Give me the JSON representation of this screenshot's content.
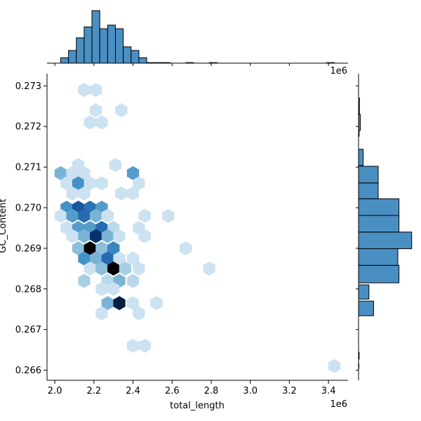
{
  "chart_data": [
    {
      "type": "hexbin",
      "panel": "joint",
      "xlabel": "total_length",
      "ylabel": "GC_Content",
      "x_offset_label": "1e6",
      "xlim": [
        1.96,
        3.5
      ],
      "ylim": [
        0.26575,
        0.2733
      ],
      "xticks": [
        2.0,
        2.2,
        2.4,
        2.6,
        2.8,
        3.0,
        3.2,
        3.4
      ],
      "xtick_labels": [
        "2.0",
        "2.2",
        "2.4",
        "2.6",
        "2.8",
        "3.0",
        "3.2",
        "3.4"
      ],
      "yticks": [
        0.266,
        0.267,
        0.268,
        0.269,
        0.27,
        0.271,
        0.272,
        0.273
      ],
      "ytick_labels": [
        "0.266",
        "0.267",
        "0.268",
        "0.269",
        "0.270",
        "0.271",
        "0.272",
        "0.273"
      ],
      "cmap": [
        "#deebf7",
        "#08306b"
      ],
      "points": [
        {
          "x": 2.15,
          "y": 0.2729,
          "c": 0.1
        },
        {
          "x": 2.21,
          "y": 0.2729,
          "c": 0.1
        },
        {
          "x": 2.21,
          "y": 0.2724,
          "c": 0.1
        },
        {
          "x": 2.34,
          "y": 0.2724,
          "c": 0.1
        },
        {
          "x": 2.18,
          "y": 0.2721,
          "c": 0.1
        },
        {
          "x": 2.24,
          "y": 0.2721,
          "c": 0.1
        },
        {
          "x": 2.12,
          "y": 0.27105,
          "c": 0.1
        },
        {
          "x": 2.31,
          "y": 0.27105,
          "c": 0.1
        },
        {
          "x": 2.03,
          "y": 0.27085,
          "c": 0.45
        },
        {
          "x": 2.09,
          "y": 0.27085,
          "c": 0.1
        },
        {
          "x": 2.15,
          "y": 0.27085,
          "c": 0.1
        },
        {
          "x": 2.4,
          "y": 0.27085,
          "c": 0.55
        },
        {
          "x": 2.06,
          "y": 0.2706,
          "c": 0.1
        },
        {
          "x": 2.12,
          "y": 0.2706,
          "c": 0.6
        },
        {
          "x": 2.18,
          "y": 0.2706,
          "c": 0.1
        },
        {
          "x": 2.24,
          "y": 0.2706,
          "c": 0.1
        },
        {
          "x": 2.43,
          "y": 0.2706,
          "c": 0.1
        },
        {
          "x": 2.09,
          "y": 0.27035,
          "c": 0.1
        },
        {
          "x": 2.15,
          "y": 0.27035,
          "c": 0.1
        },
        {
          "x": 2.34,
          "y": 0.27035,
          "c": 0.1
        },
        {
          "x": 2.4,
          "y": 0.27035,
          "c": 0.1
        },
        {
          "x": 2.06,
          "y": 0.27,
          "c": 0.6
        },
        {
          "x": 2.12,
          "y": 0.27,
          "c": 0.82
        },
        {
          "x": 2.18,
          "y": 0.27,
          "c": 0.72
        },
        {
          "x": 2.24,
          "y": 0.27,
          "c": 0.55
        },
        {
          "x": 2.03,
          "y": 0.2698,
          "c": 0.1
        },
        {
          "x": 2.09,
          "y": 0.2698,
          "c": 0.55
        },
        {
          "x": 2.15,
          "y": 0.2698,
          "c": 0.75
        },
        {
          "x": 2.21,
          "y": 0.2698,
          "c": 0.45
        },
        {
          "x": 2.27,
          "y": 0.2698,
          "c": 0.1
        },
        {
          "x": 2.46,
          "y": 0.2698,
          "c": 0.1
        },
        {
          "x": 2.58,
          "y": 0.2698,
          "c": 0.1
        },
        {
          "x": 2.06,
          "y": 0.2695,
          "c": 0.1
        },
        {
          "x": 2.12,
          "y": 0.2695,
          "c": 0.55
        },
        {
          "x": 2.18,
          "y": 0.2695,
          "c": 0.55
        },
        {
          "x": 2.24,
          "y": 0.2695,
          "c": 0.75
        },
        {
          "x": 2.3,
          "y": 0.2695,
          "c": 0.2
        },
        {
          "x": 2.43,
          "y": 0.2695,
          "c": 0.1
        },
        {
          "x": 2.09,
          "y": 0.2693,
          "c": 0.1
        },
        {
          "x": 2.15,
          "y": 0.2693,
          "c": 0.45
        },
        {
          "x": 2.21,
          "y": 0.2693,
          "c": 0.92
        },
        {
          "x": 2.27,
          "y": 0.2693,
          "c": 0.45
        },
        {
          "x": 2.33,
          "y": 0.2693,
          "c": 0.1
        },
        {
          "x": 2.46,
          "y": 0.2693,
          "c": 0.1
        },
        {
          "x": 2.12,
          "y": 0.269,
          "c": 0.4
        },
        {
          "x": 2.18,
          "y": 0.269,
          "c": 1.0
        },
        {
          "x": 2.24,
          "y": 0.269,
          "c": 0.4
        },
        {
          "x": 2.3,
          "y": 0.269,
          "c": 0.65
        },
        {
          "x": 2.67,
          "y": 0.269,
          "c": 0.1
        },
        {
          "x": 2.15,
          "y": 0.26875,
          "c": 0.6
        },
        {
          "x": 2.21,
          "y": 0.26875,
          "c": 0.45
        },
        {
          "x": 2.27,
          "y": 0.26875,
          "c": 0.75
        },
        {
          "x": 2.33,
          "y": 0.26875,
          "c": 0.1
        },
        {
          "x": 2.4,
          "y": 0.26875,
          "c": 0.1
        },
        {
          "x": 2.18,
          "y": 0.2685,
          "c": 0.1
        },
        {
          "x": 2.24,
          "y": 0.2685,
          "c": 0.4
        },
        {
          "x": 2.3,
          "y": 0.2685,
          "c": 1.0
        },
        {
          "x": 2.36,
          "y": 0.2685,
          "c": 0.3
        },
        {
          "x": 2.43,
          "y": 0.2685,
          "c": 0.1
        },
        {
          "x": 2.79,
          "y": 0.2685,
          "c": 0.1
        },
        {
          "x": 2.15,
          "y": 0.2682,
          "c": 0.3
        },
        {
          "x": 2.27,
          "y": 0.2682,
          "c": 0.2
        },
        {
          "x": 2.33,
          "y": 0.2682,
          "c": 0.45
        },
        {
          "x": 2.4,
          "y": 0.2682,
          "c": 0.2
        },
        {
          "x": 2.24,
          "y": 0.268,
          "c": 0.1
        },
        {
          "x": 2.3,
          "y": 0.268,
          "c": 0.1
        },
        {
          "x": 2.27,
          "y": 0.26765,
          "c": 0.45
        },
        {
          "x": 2.33,
          "y": 0.26765,
          "c": 0.95
        },
        {
          "x": 2.4,
          "y": 0.26765,
          "c": 0.1
        },
        {
          "x": 2.52,
          "y": 0.26765,
          "c": 0.1
        },
        {
          "x": 2.24,
          "y": 0.2674,
          "c": 0.1
        },
        {
          "x": 2.43,
          "y": 0.2674,
          "c": 0.1
        },
        {
          "x": 2.4,
          "y": 0.2666,
          "c": 0.1
        },
        {
          "x": 2.46,
          "y": 0.2666,
          "c": 0.1
        },
        {
          "x": 3.43,
          "y": 0.2661,
          "c": 0.1
        }
      ]
    },
    {
      "type": "histogram",
      "panel": "marginal-x",
      "fill": "#4a8fc2",
      "bins": [
        {
          "x0": 2.03,
          "x1": 2.07,
          "count": 3
        },
        {
          "x0": 2.07,
          "x1": 2.11,
          "count": 7
        },
        {
          "x0": 2.11,
          "x1": 2.15,
          "count": 14
        },
        {
          "x0": 2.15,
          "x1": 2.19,
          "count": 20
        },
        {
          "x0": 2.19,
          "x1": 2.23,
          "count": 29
        },
        {
          "x0": 2.23,
          "x1": 2.27,
          "count": 19
        },
        {
          "x0": 2.27,
          "x1": 2.31,
          "count": 21
        },
        {
          "x0": 2.31,
          "x1": 2.35,
          "count": 19
        },
        {
          "x0": 2.35,
          "x1": 2.39,
          "count": 9
        },
        {
          "x0": 2.39,
          "x1": 2.43,
          "count": 7
        },
        {
          "x0": 2.43,
          "x1": 2.47,
          "count": 3
        },
        {
          "x0": 2.47,
          "x1": 2.51,
          "count": 0.3
        },
        {
          "x0": 2.51,
          "x1": 2.55,
          "count": 0.3
        },
        {
          "x0": 2.55,
          "x1": 2.59,
          "count": 0.3
        },
        {
          "x0": 2.67,
          "x1": 2.71,
          "count": 0.3
        },
        {
          "x0": 2.79,
          "x1": 2.83,
          "count": 0.3
        },
        {
          "x0": 3.39,
          "x1": 3.43,
          "count": 0.3
        }
      ],
      "ymax": 31
    },
    {
      "type": "histogram",
      "panel": "marginal-y",
      "orientation": "horizontal",
      "fill": "#4a8fc2",
      "bins": [
        {
          "y0": 0.26604,
          "y1": 0.26616,
          "count": 0.3
        },
        {
          "y0": 0.26627,
          "y1": 0.26644,
          "count": 0.5
        },
        {
          "y0": 0.26734,
          "y1": 0.2677,
          "count": 13
        },
        {
          "y0": 0.26775,
          "y1": 0.2681,
          "count": 9
        },
        {
          "y0": 0.26815,
          "y1": 0.26858,
          "count": 35
        },
        {
          "y0": 0.26858,
          "y1": 0.26899,
          "count": 34
        },
        {
          "y0": 0.26899,
          "y1": 0.2694,
          "count": 46
        },
        {
          "y0": 0.2694,
          "y1": 0.26981,
          "count": 35
        },
        {
          "y0": 0.26981,
          "y1": 0.27022,
          "count": 35
        },
        {
          "y0": 0.27022,
          "y1": 0.27061,
          "count": 17
        },
        {
          "y0": 0.27061,
          "y1": 0.27102,
          "count": 17
        },
        {
          "y0": 0.27104,
          "y1": 0.27144,
          "count": 4
        },
        {
          "y0": 0.27176,
          "y1": 0.2719,
          "count": 0.5
        },
        {
          "y0": 0.2719,
          "y1": 0.2723,
          "count": 1.5
        },
        {
          "y0": 0.2723,
          "y1": 0.2727,
          "count": 0.8
        }
      ],
      "xmax": 48
    }
  ]
}
